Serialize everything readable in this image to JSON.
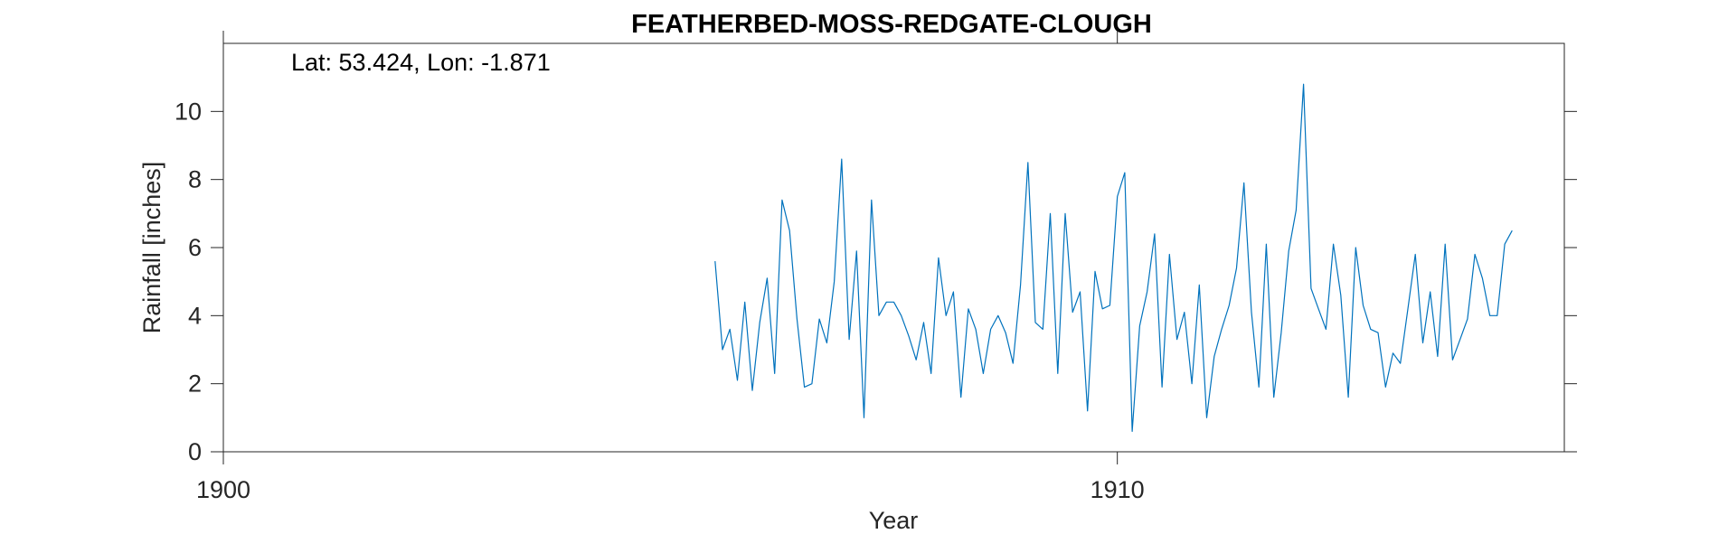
{
  "chart_data": {
    "type": "line",
    "title": "FEATHERBED-MOSS-REDGATE-CLOUGH",
    "annotation": "Lat: 53.424, Lon: -1.871",
    "xlabel": "Year",
    "ylabel": "Rainfall [inches]",
    "xlim": [
      1900,
      1915
    ],
    "ylim": [
      0,
      12
    ],
    "x_ticks": [
      1900,
      1910
    ],
    "x_tick_labels": [
      "1900",
      "1910"
    ],
    "y_ticks": [
      0,
      2,
      4,
      6,
      8,
      10
    ],
    "y_tick_labels": [
      "0",
      "2",
      "4",
      "6",
      "8",
      "10"
    ],
    "grid": false,
    "line_color": "#0072BD",
    "series": [
      {
        "x_start": 1905.5,
        "x_step_months": 1,
        "values": [
          5.6,
          3.0,
          3.6,
          2.1,
          4.4,
          1.8,
          3.8,
          5.1,
          2.3,
          7.4,
          6.5,
          3.9,
          1.9,
          2.0,
          3.9,
          3.2,
          5.0,
          8.6,
          3.3,
          5.9,
          1.0,
          7.4,
          4.0,
          4.4,
          4.4,
          4.0,
          3.4,
          2.7,
          3.8,
          2.3,
          5.7,
          4.0,
          4.7,
          1.6,
          4.2,
          3.6,
          2.3,
          3.6,
          4.0,
          3.5,
          2.6,
          4.9,
          8.5,
          3.8,
          3.6,
          7.0,
          2.3,
          7.0,
          4.1,
          4.7,
          1.2,
          5.3,
          4.2,
          4.3,
          7.5,
          8.2,
          0.6,
          3.7,
          4.7,
          6.4,
          1.9,
          5.8,
          3.3,
          4.1,
          2.0,
          4.9,
          1.0,
          2.8,
          3.6,
          4.3,
          5.4,
          7.9,
          4.1,
          1.9,
          6.1,
          1.6,
          3.5,
          5.9,
          7.1,
          10.8,
          4.8,
          4.2,
          3.6,
          6.1,
          4.6,
          1.6,
          6.0,
          4.3,
          3.6,
          3.5,
          1.9,
          2.9,
          2.6,
          4.2,
          5.8,
          3.2,
          4.7,
          2.8,
          6.1,
          2.7,
          3.3,
          3.9,
          5.8,
          5.1,
          4.0,
          4.0,
          6.1,
          6.5
        ]
      }
    ]
  }
}
